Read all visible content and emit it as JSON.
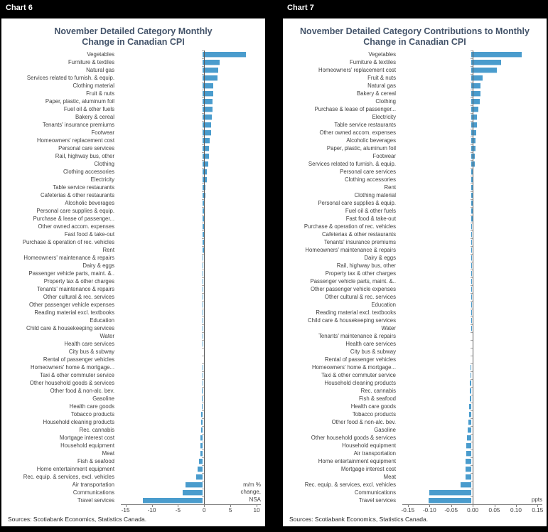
{
  "colors": {
    "page_bg": "#000000",
    "panel_bg": "#FFFFFF",
    "bar": "#4A9CCD",
    "title": "#44546A",
    "label": "#404040",
    "axis": "#808080",
    "zero_line": "#595959"
  },
  "panels": [
    {
      "header": "Chart 6",
      "title_line1": "November Detailed Category Monthly",
      "title_line2": "Change in Canadian CPI",
      "sources": "Sources: Scotiabank Economics, Statistics Canada."
    },
    {
      "header": "Chart 7",
      "title_line1": "November Detailed Category Contributions to Monthly",
      "title_line2": "Change in Canadian CPI",
      "sources": "Sources: Scotiabank Economics, Statistics Canada."
    }
  ],
  "chart_data": [
    {
      "type": "bar",
      "orientation": "horizontal",
      "title": "November Detailed Category Monthly Change in Canadian CPI",
      "xlabel": "m/m % change, NSA",
      "unit_note_lines": [
        "m/m %",
        "change,",
        "NSA"
      ],
      "xlim": [
        -15.9,
        10.8
      ],
      "grid": false,
      "legend": false,
      "xticks": [
        {
          "v": -15,
          "label": "-15"
        },
        {
          "v": -10,
          "label": "-10"
        },
        {
          "v": -5,
          "label": "-5"
        },
        {
          "v": 0,
          "label": "0"
        },
        {
          "v": 5,
          "label": "5"
        },
        {
          "v": 10,
          "label": "10"
        }
      ],
      "categories": [
        "Vegetables",
        "Furniture & textiles",
        "Natural gas",
        "Services related to furnish. & equip.",
        "Clothing material",
        "Fruit & nuts",
        "Paper, plastic, aluminum foil",
        "Fuel oil & other fuels",
        "Bakery & cereal",
        "Tenants' insurance premiums",
        "Footwear",
        "Homeowners' replacement cost",
        "Personal care services",
        "Rail, highway bus, other",
        "Clothing",
        "Clothing accessories",
        "Electricity",
        "Table service restaurants",
        "Cafeterias & other restaurants",
        "Alcoholic beverages",
        "Personal care supplies & equip.",
        "Purchase & lease of passenger...",
        "Other owned accom. expenses",
        "Fast food & take-out",
        "Purchase & operation of rec. vehicles",
        "Rent",
        "Homeowners' maintenance & repairs",
        "Dairy & eggs",
        "Passenger vehicle parts, maint. &..",
        "Property tax & other charges",
        "Tenants' maintenance & repairs",
        "Other cultural & rec. services",
        "Other passenger vehicle expenses",
        "Reading material excl. textbooks",
        "Education",
        "Child care & housekeeping services",
        "Water",
        "Health care services",
        "City bus & subway",
        "Rental of passenger vehicles",
        "Homeowners' home & mortgage...",
        "Taxi & other commuter service",
        "Other household goods & services",
        "Other food & non-alc. bev.",
        "Gasoline",
        "Health care goods",
        "Tobacco products",
        "Household cleaning products",
        "Rec. cannabis",
        "Mortgage interest cost",
        "Household equipment",
        "Meat",
        "Fish & seafood",
        "Home entertainment equipment",
        "Rec. equip. & services, excl. vehicles",
        "Air transportation",
        "Communications",
        "Travel services"
      ],
      "values": [
        8.0,
        3.1,
        2.9,
        2.8,
        2.0,
        1.9,
        1.85,
        1.8,
        1.7,
        1.6,
        1.5,
        1.3,
        1.2,
        1.1,
        1.0,
        0.8,
        0.7,
        0.5,
        0.45,
        0.4,
        0.4,
        0.35,
        0.3,
        0.3,
        0.25,
        0.2,
        0.15,
        0.1,
        0.1,
        0.07,
        0.05,
        0.04,
        0.03,
        0.02,
        0.02,
        0.01,
        0.01,
        0.01,
        0.0,
        0.0,
        -0.02,
        -0.03,
        -0.1,
        -0.12,
        -0.15,
        -0.2,
        -0.3,
        -0.3,
        -0.35,
        -0.4,
        -0.45,
        -0.5,
        -0.65,
        -1.0,
        -1.25,
        -3.2,
        -3.7,
        -11.1
      ]
    },
    {
      "type": "bar",
      "orientation": "horizontal",
      "title": "November Detailed Category Contributions to Monthly Change in Canadian CPI",
      "xlabel": "ppts",
      "unit_note_lines": [
        "ppts"
      ],
      "xlim": [
        -0.163,
        0.161
      ],
      "grid": false,
      "legend": false,
      "xticks": [
        {
          "v": -0.15,
          "label": "-0.15"
        },
        {
          "v": -0.1,
          "label": "-0.10"
        },
        {
          "v": -0.05,
          "label": "-0.05"
        },
        {
          "v": 0,
          "label": "0.00"
        },
        {
          "v": 0.05,
          "label": "0.05"
        },
        {
          "v": 0.1,
          "label": "0.10"
        },
        {
          "v": 0.15,
          "label": "0.15"
        }
      ],
      "categories": [
        "Vegetables",
        "Furniture & textiles",
        "Homeowners' replacement cost",
        "Fruit & nuts",
        "Natural gas",
        "Bakery & cereal",
        "Clothing",
        "Purchase & lease of passenger...",
        "Electricity",
        "Table service restaurants",
        "Other owned accom. expenses",
        "Alcoholic beverages",
        "Paper, plastic, aluminum foil",
        "Footwear",
        "Services related to furnish. & equip.",
        "Personal care services",
        "Clothing accessories",
        "Rent",
        "Clothing material",
        "Personal care supplies & equip.",
        "Fuel oil & other fuels",
        "Fast food & take-out",
        "Purchase & operation of rec. vehicles",
        "Cafeterias & other restaurants",
        "Tenants' insurance premiums",
        "Homeowners' maintenance & repairs",
        "Dairy & eggs",
        "Rail, highway bus, other",
        "Property tax & other charges",
        "Passenger vehicle parts, maint. &..",
        "Other passenger vehicle expenses",
        "Other cultural & rec. services",
        "Education",
        "Reading material excl. textbooks",
        "Child care & housekeeping services",
        "Water",
        "Tenants' maintenance & repairs",
        "Health care services",
        "City bus & subway",
        "Rental of passenger vehicles",
        "Homeowners' home & mortgage...",
        "Taxi & other commuter service",
        "Household cleaning products",
        "Rec. cannabis",
        "Fish & seafood",
        "Health care goods",
        "Tobacco products",
        "Other food & non-alc. bev.",
        "Gasoline",
        "Other household goods & services",
        "Household equipment",
        "Air transportation",
        "Home entertainment equipment",
        "Mortgage interest cost",
        "Meat",
        "Rec. equip. & services, excl. vehicles",
        "Communications",
        "Travel services"
      ],
      "values": [
        0.115,
        0.068,
        0.058,
        0.026,
        0.022,
        0.021,
        0.02,
        0.017,
        0.013,
        0.013,
        0.012,
        0.011,
        0.011,
        0.009,
        0.008,
        0.006,
        0.005,
        0.005,
        0.004,
        0.004,
        0.004,
        0.004,
        0.003,
        0.003,
        0.003,
        0.002,
        0.002,
        0.002,
        0.002,
        0.001,
        0.001,
        0.001,
        0.001,
        0.001,
        0.001,
        0.0005,
        0.0,
        0.0,
        0.0,
        0.0,
        -0.0005,
        -0.001,
        -0.002,
        -0.002,
        -0.003,
        -0.004,
        -0.005,
        -0.006,
        -0.007,
        -0.009,
        -0.01,
        -0.011,
        -0.012,
        -0.012,
        -0.012,
        -0.024,
        -0.094,
        -0.096
      ]
    }
  ]
}
